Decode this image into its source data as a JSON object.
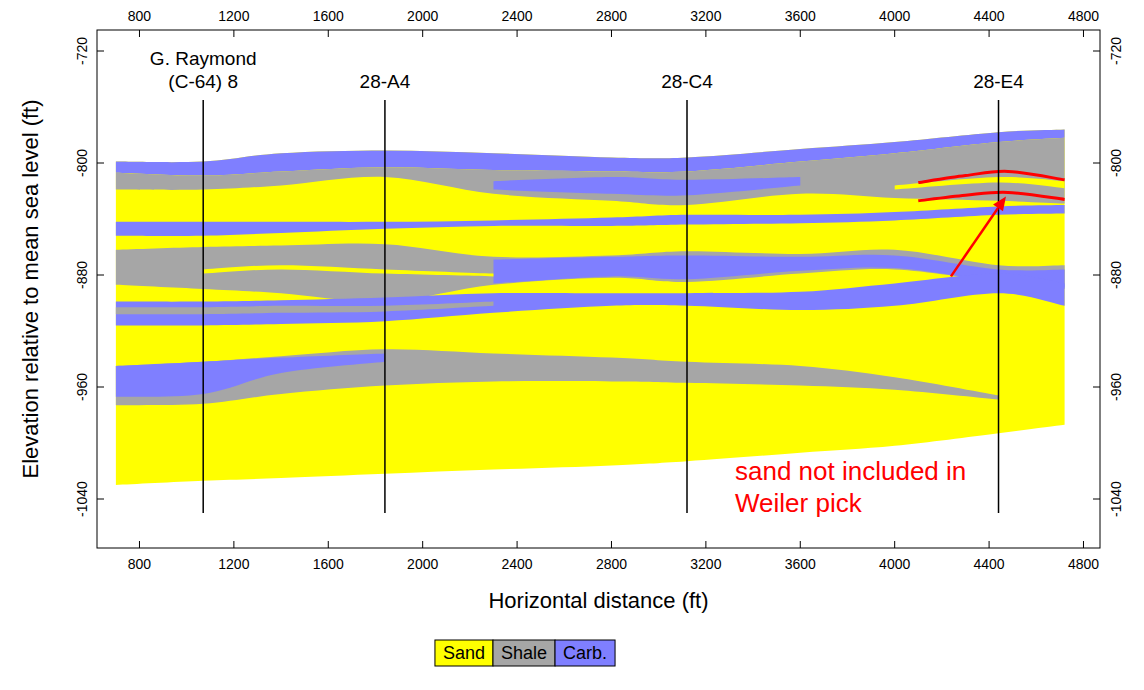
{
  "chart_data": {
    "type": "cross_section",
    "xlabel": "Horizontal distance (ft)",
    "ylabel": "Elevation relative to mean sea level (ft)",
    "xlim": [
      620,
      4870
    ],
    "ylim": [
      -1075,
      -705
    ],
    "xticks": [
      800,
      1200,
      1600,
      2000,
      2400,
      2800,
      3200,
      3600,
      4000,
      4400,
      4800
    ],
    "yticks": [
      -720,
      -800,
      -880,
      -960,
      -1040
    ],
    "legend": "bottom",
    "series": [
      {
        "name": "Sand",
        "color": "#ffff00"
      },
      {
        "name": "Shale",
        "color": "#a6a6a6"
      },
      {
        "name": "Carb.",
        "color": "#7f7fff"
      }
    ],
    "x": [
      700,
      1070,
      1400,
      1840,
      2300,
      2800,
      3120,
      3600,
      4000,
      4440,
      4720
    ],
    "layers": [
      {
        "facies": "Sand",
        "top": [
          -799,
          -799,
          -793,
          -791,
          -793,
          -796,
          -796,
          -790,
          -785,
          -778,
          -776
        ],
        "bottom": [
          -1030,
          -1027,
          -1025,
          -1022,
          -1019,
          -1016,
          -1013,
          -1007,
          -1002,
          -993,
          -987
        ]
      },
      {
        "facies": "Carb.",
        "top": [
          -799,
          -799,
          -793,
          -791,
          -793,
          -796,
          -796,
          -790,
          -785,
          -778,
          -776
        ],
        "bottom": [
          -807,
          -809,
          -806,
          -803,
          -805,
          -806,
          -806,
          -799,
          -793,
          -785,
          -782
        ]
      },
      {
        "facies": "Shale",
        "top": [
          -807,
          -809,
          -806,
          -803,
          -805,
          -806,
          -806,
          -799,
          -793,
          -785,
          -782
        ],
        "bottom": [
          -819,
          -819,
          -816,
          -810,
          -822,
          -827,
          -830,
          -822,
          -825,
          -827,
          -829
        ]
      },
      {
        "facies": "Carb.",
        "top": [
          null,
          null,
          null,
          null,
          -813,
          -810,
          -812,
          -810,
          null,
          null,
          null
        ],
        "bottom": [
          null,
          null,
          null,
          null,
          -819,
          -822,
          -823,
          -816,
          null,
          null,
          null
        ]
      },
      {
        "facies": "Sand",
        "top": [
          null,
          null,
          null,
          null,
          null,
          null,
          null,
          null,
          -816,
          -810,
          -813
        ],
        "bottom": [
          null,
          null,
          null,
          null,
          null,
          null,
          null,
          null,
          -819,
          -814,
          -818
        ]
      },
      {
        "facies": "Carb.",
        "top": [
          -842,
          -842,
          -842,
          -842,
          -841,
          -839,
          -837,
          -837,
          -835,
          -831,
          -830
        ],
        "bottom": [
          -852,
          -852,
          -850,
          -847,
          -845,
          -845,
          -844,
          -843,
          -841,
          -837,
          -836
        ]
      },
      {
        "facies": "Shale",
        "top": [
          -862,
          -860,
          -859,
          -858,
          -867,
          -866,
          -863,
          -865,
          -862,
          -873,
          -873
        ],
        "bottom": [
          -887,
          -890,
          -893,
          -899,
          -887,
          -882,
          -885,
          -879,
          -876,
          -885,
          -890
        ]
      },
      {
        "facies": "Carb.",
        "top": [
          null,
          null,
          null,
          null,
          -869,
          -867,
          -866,
          -867,
          -866,
          -876,
          -876
        ],
        "bottom": [
          null,
          null,
          null,
          null,
          -886,
          -881,
          -883,
          -877,
          -875,
          -885,
          -889
        ]
      },
      {
        "facies": "Sand",
        "top": [
          null,
          -876,
          -873,
          -876,
          -879,
          null,
          null,
          null,
          null,
          null,
          null
        ],
        "bottom": [
          null,
          -879,
          -876,
          -879,
          -881,
          null,
          null,
          null,
          null,
          null,
          null
        ]
      },
      {
        "facies": "Carb.",
        "top": [
          -899,
          -899,
          -898,
          -896,
          -893,
          -893,
          -893,
          -892,
          -886,
          -879,
          -886
        ],
        "bottom": [
          -916,
          -916,
          -915,
          -913,
          -907,
          -902,
          -902,
          -905,
          -902,
          -893,
          -902
        ]
      },
      {
        "facies": "Shale",
        "top": [
          -903,
          -903,
          -902,
          -902,
          -899,
          null,
          null,
          null,
          null,
          null,
          null
        ],
        "bottom": [
          -908,
          -908,
          -907,
          -906,
          -902,
          null,
          null,
          null,
          null,
          null,
          null
        ]
      },
      {
        "facies": "Shale",
        "top": [
          -945,
          -942,
          -938,
          -933,
          -936,
          -939,
          -942,
          -945,
          -953,
          -966,
          null
        ],
        "bottom": [
          -973,
          -972,
          -965,
          -959,
          -956,
          -956,
          -957,
          -959,
          -962,
          -969,
          null
        ]
      },
      {
        "facies": "Carb.",
        "top": [
          -945,
          -942,
          -939,
          -936,
          null,
          null,
          null,
          null,
          null,
          null,
          null
        ],
        "bottom": [
          -967,
          -965,
          -950,
          -942,
          null,
          null,
          null,
          null,
          null,
          null,
          null
        ]
      }
    ],
    "wells": [
      {
        "name": "G. Raymond (C-64) 8",
        "x": 1070,
        "top": -755,
        "bottom": -1050
      },
      {
        "name": "28-A4",
        "x": 1840,
        "top": -755,
        "bottom": -1050
      },
      {
        "name": "28-C4",
        "x": 3120,
        "top": -755,
        "bottom": -1050
      },
      {
        "name": "28-E4",
        "x": 4440,
        "top": -755,
        "bottom": -1050
      }
    ],
    "annotation": {
      "text": "sand not included in Weiler pick",
      "color": "#ff0000",
      "x": [
        4100,
        4300,
        4480,
        4720
      ],
      "upper": [
        -814,
        -809,
        -806,
        -812
      ],
      "lower": [
        -827,
        -823,
        -821,
        -826
      ]
    }
  }
}
